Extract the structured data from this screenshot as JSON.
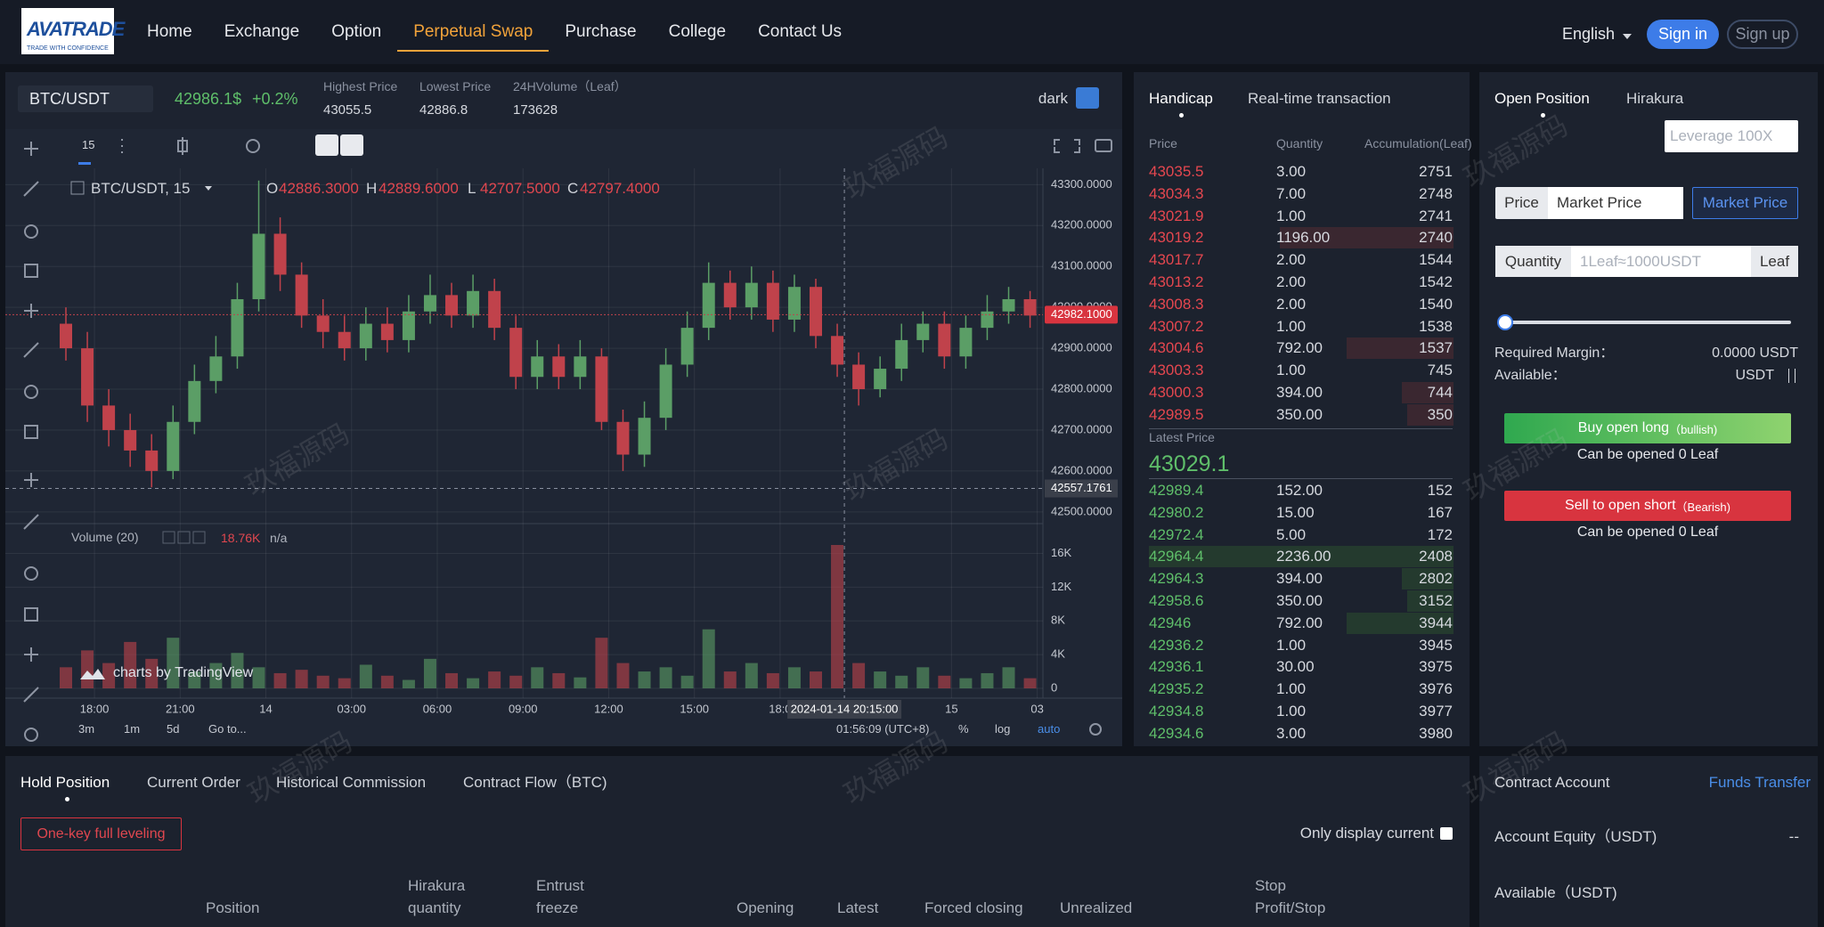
{
  "nav": {
    "logo": {
      "brand": "AVATRADE",
      "tagline": "TRADE WITH CONFIDENCE"
    },
    "items": [
      "Home",
      "Exchange",
      "Option",
      "Perpetual Swap",
      "Purchase",
      "College",
      "Contact Us"
    ],
    "language": "English",
    "sign_in": "Sign in",
    "sign_up": "Sign up"
  },
  "ticker": {
    "symbol": "BTC/USDT",
    "price": "42986.1$",
    "change": "+0.2%",
    "stats": [
      {
        "label": "Highest Price",
        "value": "43055.5"
      },
      {
        "label": "Lowest Price",
        "value": "42886.8"
      },
      {
        "label": "24HVolume（Leaf）",
        "value": "173628"
      }
    ],
    "theme": "dark"
  },
  "chart_data": {
    "type": "candlestick",
    "interval": "15",
    "legend": "BTC/USDT, 15",
    "ohlc": [
      {
        "label": "O",
        "value": "42886.3000"
      },
      {
        "label": "H",
        "value": "42889.6000"
      },
      {
        "label": "L",
        "value": "42707.5000"
      },
      {
        "label": "C",
        "value": "42797.4000"
      }
    ],
    "x": [
      17,
      17.75,
      18.5,
      19.25,
      20,
      20.75,
      21.5,
      22.25,
      23,
      23.75,
      24.5,
      25.25,
      26,
      26.75,
      27.5,
      28.25,
      29,
      29.75,
      30.5,
      31.25,
      32,
      32.75,
      33.5,
      34.25,
      35,
      35.75,
      36.5,
      37.25,
      38,
      38.75,
      39.5,
      40.25,
      41,
      41.75,
      42.5,
      43.25,
      44,
      44.75,
      45.5,
      46.25,
      47,
      47.75,
      48.5,
      49.25,
      50,
      50.75
    ],
    "open": [
      42960,
      42900,
      42760,
      42700,
      42650,
      42600,
      42720,
      42820,
      42880,
      43020,
      43180,
      43080,
      42980,
      42940,
      42900,
      42960,
      42920,
      42990,
      43030,
      42980,
      43040,
      42950,
      42830,
      42880,
      42830,
      42880,
      42720,
      42640,
      42730,
      42860,
      42950,
      43060,
      43000,
      43060,
      42970,
      43050,
      42930,
      42860,
      42800,
      42850,
      42920,
      42960,
      42880,
      42950,
      42990,
      43020
    ],
    "high": [
      43000,
      42940,
      42800,
      42740,
      42690,
      42760,
      42860,
      42930,
      43060,
      43310,
      43220,
      43110,
      43020,
      42980,
      43000,
      43000,
      43030,
      43080,
      43060,
      43080,
      43070,
      42980,
      42920,
      42910,
      42920,
      42900,
      42750,
      42770,
      42900,
      42990,
      43110,
      43090,
      43100,
      43090,
      43080,
      43070,
      42960,
      42890,
      42880,
      42960,
      42990,
      42990,
      42980,
      43030,
      43050,
      43040
    ],
    "low": [
      42870,
      42720,
      42660,
      42610,
      42560,
      42580,
      42690,
      42790,
      42850,
      42990,
      43040,
      42950,
      42900,
      42870,
      42870,
      42890,
      42890,
      42960,
      42950,
      42950,
      42920,
      42800,
      42800,
      42800,
      42800,
      42700,
      42600,
      42610,
      42700,
      42830,
      42920,
      42970,
      42970,
      42940,
      42940,
      42900,
      42830,
      42760,
      42780,
      42820,
      42890,
      42850,
      42850,
      42920,
      42960,
      42950
    ],
    "close": [
      42900,
      42760,
      42700,
      42650,
      42600,
      42720,
      42820,
      42880,
      43020,
      43180,
      43080,
      42980,
      42940,
      42900,
      42960,
      42920,
      42990,
      43030,
      42980,
      43040,
      42950,
      42830,
      42880,
      42830,
      42880,
      42720,
      42640,
      42730,
      42860,
      42950,
      43060,
      43000,
      43060,
      42970,
      43050,
      42930,
      42860,
      42800,
      42850,
      42920,
      42960,
      42880,
      42950,
      42990,
      43020,
      42980
    ],
    "up_color": "#5b9e66",
    "down_color": "#c0424b",
    "xlim": [
      17,
      51.2
    ],
    "xticks": [
      {
        "value": 18,
        "label": "18:00"
      },
      {
        "value": 21,
        "label": "21:00"
      },
      {
        "value": 24,
        "label": "14"
      },
      {
        "value": 27,
        "label": "03:00"
      },
      {
        "value": 30,
        "label": "06:00"
      },
      {
        "value": 33,
        "label": "09:00"
      },
      {
        "value": 36,
        "label": "12:00"
      },
      {
        "value": 39,
        "label": "15:00"
      },
      {
        "value": 42,
        "label": "18:0"
      },
      {
        "value": 48,
        "label": "15"
      },
      {
        "value": 51,
        "label": "03"
      }
    ],
    "ylim": [
      42480,
      43340
    ],
    "yticks": [
      {
        "value": 42500,
        "label": "42500.0000"
      },
      {
        "value": 42600,
        "label": "42600.0000"
      },
      {
        "value": 42700,
        "label": "42700.0000"
      },
      {
        "value": 42800,
        "label": "42800.0000"
      },
      {
        "value": 42900,
        "label": "42900.0000"
      },
      {
        "value": 43000,
        "label": "43000.0000"
      },
      {
        "value": 43100,
        "label": "43100.0000"
      },
      {
        "value": 43200,
        "label": "43200.0000"
      },
      {
        "value": 43300,
        "label": "43300.0000"
      }
    ],
    "grid": true,
    "last_price": {
      "value": 42982.1,
      "label": "42982.1000"
    },
    "crosshair": {
      "x": {
        "value": 44.25,
        "label": "2024-01-14 20:15:00"
      },
      "y": 42557.1761
    },
    "volume": {
      "title": "Volume (20)",
      "value_label": "18.76K",
      "ma_label": "n/a",
      "values": [
        2500,
        4500,
        3000,
        5500,
        3500,
        6000,
        2000,
        3000,
        4200,
        2500,
        1800,
        2200,
        1500,
        1200,
        2800,
        1500,
        1000,
        3500,
        1800,
        1200,
        2000,
        1500,
        2500,
        1800,
        1300,
        6000,
        3000,
        2000,
        2500,
        1500,
        7000,
        2000,
        3000,
        1800,
        2500,
        2000,
        17000,
        3000,
        2000,
        1500,
        2500,
        1500,
        1200,
        1800,
        2500,
        1200
      ],
      "ylim": [
        0,
        18900
      ],
      "yticks": [
        0,
        {
          "value": 4000,
          "label": "4K"
        },
        {
          "value": 8000,
          "label": "8K"
        },
        {
          "value": 12000,
          "label": "12K"
        },
        {
          "value": 16000,
          "label": "16K"
        }
      ]
    },
    "attribution": "charts by TradingView",
    "ranges": [
      "3m",
      "1m",
      "5d"
    ],
    "goto": "Go to...",
    "clock": "01:56:09 (UTC+8)",
    "scale_options": [
      "%",
      "log",
      "auto"
    ]
  },
  "order_book": {
    "tabs": [
      "Handicap",
      "Real-time transaction"
    ],
    "columns": [
      "Price",
      "Quantity",
      "Accumulation(Leaf)"
    ],
    "asks": [
      [
        "43035.5",
        "3.00",
        "2751"
      ],
      [
        "43034.3",
        "7.00",
        "2748"
      ],
      [
        "43021.9",
        "1.00",
        "2741"
      ],
      [
        "43019.2",
        "1196.00",
        "2740"
      ],
      [
        "43017.7",
        "2.00",
        "1544"
      ],
      [
        "43013.2",
        "2.00",
        "1542"
      ],
      [
        "43008.3",
        "2.00",
        "1540"
      ],
      [
        "43007.2",
        "1.00",
        "1538"
      ],
      [
        "43004.6",
        "792.00",
        "1537"
      ],
      [
        "43003.3",
        "1.00",
        "745"
      ],
      [
        "43000.3",
        "394.00",
        "744"
      ],
      [
        "42989.5",
        "350.00",
        "350"
      ]
    ],
    "latest_label": "Latest Price",
    "latest": "43029.1",
    "bids": [
      [
        "42989.4",
        "152.00",
        "152"
      ],
      [
        "42980.2",
        "15.00",
        "167"
      ],
      [
        "42972.4",
        "5.00",
        "172"
      ],
      [
        "42964.4",
        "2236.00",
        "2408"
      ],
      [
        "42964.3",
        "394.00",
        "2802"
      ],
      [
        "42958.6",
        "350.00",
        "3152"
      ],
      [
        "42946",
        "792.00",
        "3944"
      ],
      [
        "42936.2",
        "1.00",
        "3945"
      ],
      [
        "42936.1",
        "30.00",
        "3975"
      ],
      [
        "42935.2",
        "1.00",
        "3976"
      ],
      [
        "42934.8",
        "1.00",
        "3977"
      ],
      [
        "42934.6",
        "3.00",
        "3980"
      ]
    ]
  },
  "open_position": {
    "tabs": [
      "Open Position",
      "Hirakura"
    ],
    "leverage_placeholder": "Leverage 100X",
    "price_label": "Price",
    "price_input": "Market Price",
    "price_button": "Market Price",
    "quantity_label": "Quantity",
    "quantity_placeholder": "1Leaf≈1000USDT",
    "quantity_unit": "Leaf",
    "required_margin_label": "Required Margin：",
    "required_margin": "0.0000 USDT",
    "available_label": "Available：",
    "available": "USDT",
    "buy": {
      "label": "Buy open long",
      "note": "（bullish)",
      "capacity": "Can be opened 0 Leaf"
    },
    "sell": {
      "label": "Sell to open short",
      "note": "（Bearish)",
      "capacity": "Can be opened 0 Leaf"
    }
  },
  "positions": {
    "tabs": [
      "Hold Position",
      "Current Order",
      "Historical Commission",
      "Contract Flow（BTC)"
    ],
    "full_leveling": "One-key full leveling",
    "only_current": "Only display current",
    "columns": [
      [
        "Position"
      ],
      [
        "Hirakura",
        "quantity"
      ],
      [
        "Entrust",
        "freeze"
      ],
      [
        "Opening"
      ],
      [
        "Latest"
      ],
      [
        "Forced closing"
      ],
      [
        "Unrealized"
      ],
      [
        "Stop",
        "Profit/Stop"
      ]
    ]
  },
  "account": {
    "title": "Contract Account",
    "transfer": "Funds Transfer",
    "equity_label": "Account Equity（USDT)",
    "equity": "--",
    "available_label": "Available（USDT)"
  },
  "watermark": "玖福源码"
}
